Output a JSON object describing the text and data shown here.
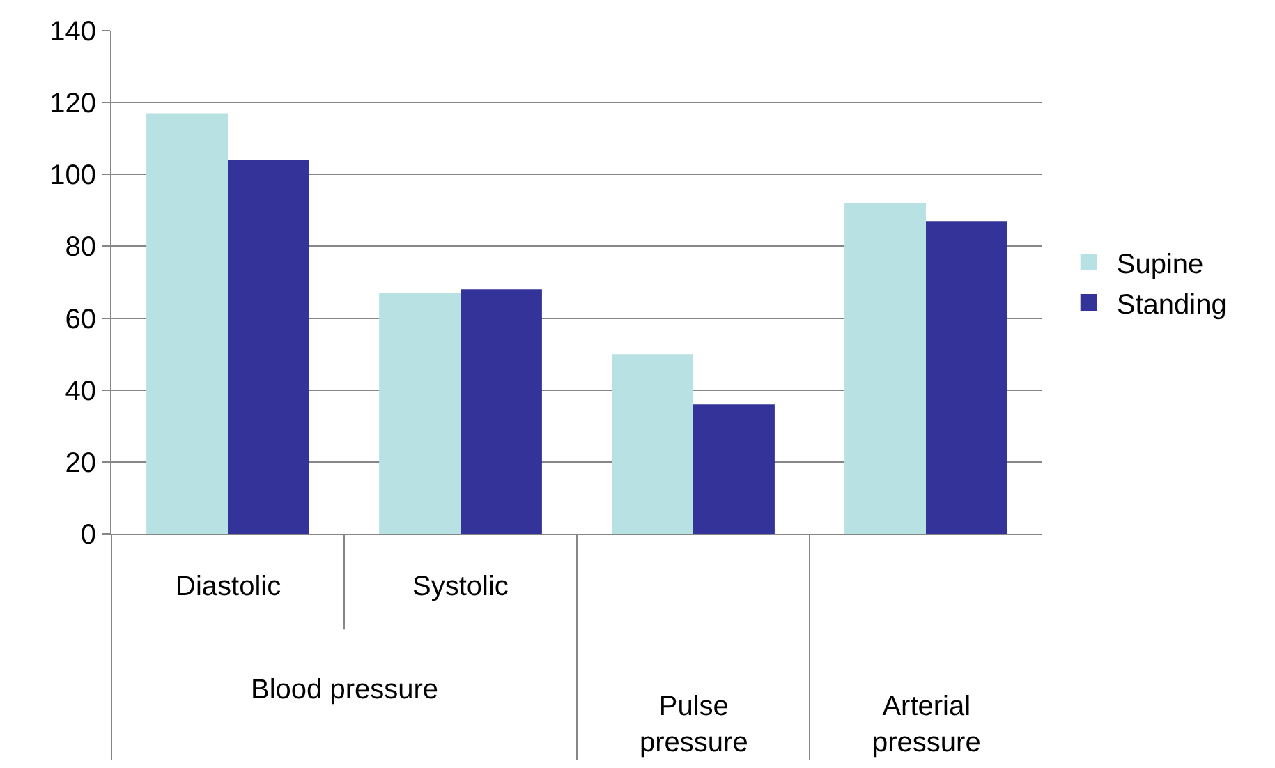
{
  "chart_data": {
    "type": "bar",
    "categories": [
      "Diastolic",
      "Systolic",
      "Pulse pressure",
      "Arterial pressure"
    ],
    "annotations": [
      "Blood pressure"
    ],
    "series": [
      {
        "name": "Supine",
        "color": "#b7e1e3",
        "values": [
          117,
          67,
          50,
          92
        ]
      },
      {
        "name": "Standing",
        "color": "#333399",
        "values": [
          104,
          68,
          36,
          87
        ]
      }
    ],
    "ylim": [
      0,
      140
    ],
    "yticks": [
      0,
      20,
      40,
      60,
      80,
      100,
      120,
      140
    ],
    "grid": "y",
    "legend": "right"
  }
}
